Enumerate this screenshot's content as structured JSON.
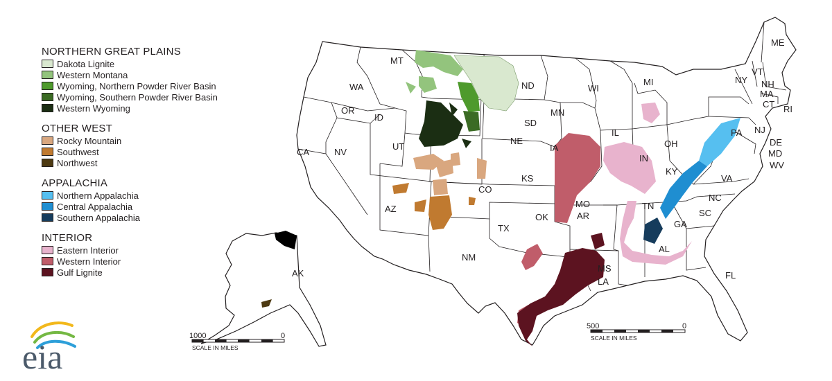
{
  "legend": {
    "groups": [
      {
        "title": "NORTHERN GREAT PLAINS",
        "items": [
          {
            "label": "Dakota Lignite",
            "color": "#d9e8cf"
          },
          {
            "label": "Western Montana",
            "color": "#93c47d"
          },
          {
            "label": "Wyoming, Northern Powder River Basin",
            "color": "#4e9a2c"
          },
          {
            "label": "Wyoming, Southern Powder River Basin",
            "color": "#3b6b24"
          },
          {
            "label": "Western Wyoming",
            "color": "#1b2e13"
          }
        ]
      },
      {
        "title": "OTHER WEST",
        "items": [
          {
            "label": "Rocky Mountain",
            "color": "#d9a77f"
          },
          {
            "label": "Southwest",
            "color": "#c07a30"
          },
          {
            "label": "Northwest",
            "color": "#4d3a12"
          }
        ]
      },
      {
        "title": "APPALACHIA",
        "items": [
          {
            "label": "Northern Appalachia",
            "color": "#56bff0"
          },
          {
            "label": "Central Appalachia",
            "color": "#1f8ed1"
          },
          {
            "label": "Southern Appalachia",
            "color": "#163c5c"
          }
        ]
      },
      {
        "title": "INTERIOR",
        "items": [
          {
            "label": "Eastern Interior",
            "color": "#e8b3cd"
          },
          {
            "label": "Western Interior",
            "color": "#c05d6a"
          },
          {
            "label": "Gulf Lignite",
            "color": "#5c1320"
          }
        ]
      }
    ]
  },
  "states": [
    "WA",
    "MT",
    "ND",
    "MN",
    "WI",
    "MI",
    "NY",
    "VT",
    "NH",
    "ME",
    "MA",
    "CT",
    "RI",
    "OR",
    "ID",
    "SD",
    "IA",
    "IL",
    "IN",
    "OH",
    "PA",
    "NJ",
    "DE",
    "MD",
    "WV",
    "CA",
    "NV",
    "UT",
    "NE",
    "KS",
    "CO",
    "MO",
    "KY",
    "VA",
    "NC",
    "SC",
    "TN",
    "AZ",
    "NM",
    "TX",
    "OK",
    "AR",
    "GA",
    "AL",
    "MS",
    "LA",
    "FL",
    "AK"
  ],
  "scales": [
    {
      "max": "1000",
      "min": "0",
      "caption": "SCALE IN MILES"
    },
    {
      "max": "500",
      "min": "0",
      "caption": "SCALE IN MILES"
    }
  ],
  "logo": {
    "text": "eia"
  }
}
